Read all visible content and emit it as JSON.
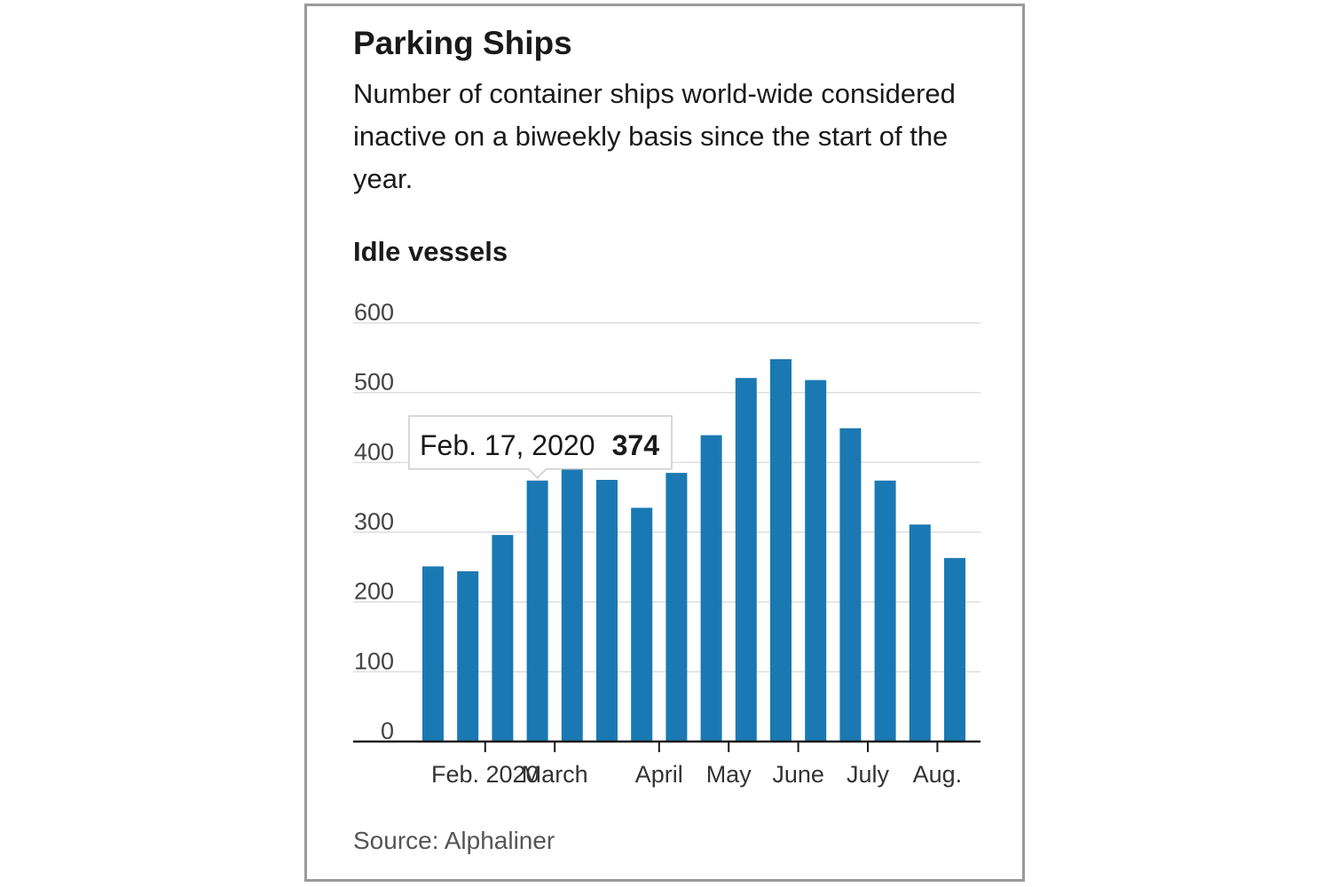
{
  "title": "Parking Ships",
  "subtitle": "Number of container ships world-wide considered inactive on a biweekly basis since the start of the year.",
  "source": "Source: Alphaliner",
  "colors": {
    "bar": "#1a79b2",
    "grid": "#dddddd",
    "axis": "#1a1a1a",
    "frame": "#9a9a9a"
  },
  "tooltip": {
    "date": "Feb. 17, 2020",
    "value": "374",
    "bar_index": 3
  },
  "chart_data": {
    "type": "bar",
    "title": "Idle vessels",
    "xlabel": "",
    "ylabel": "Idle vessels",
    "ylim": [
      0,
      600
    ],
    "yticks": [
      0,
      100,
      200,
      300,
      400,
      500,
      600
    ],
    "values": [
      251,
      244,
      296,
      374,
      397,
      375,
      335,
      385,
      439,
      521,
      548,
      518,
      449,
      374,
      311,
      263
    ],
    "x_tick_labels": [
      "Feb. 2020",
      "March",
      "April",
      "May",
      "June",
      "July",
      "Aug."
    ],
    "x_tick_after_bar": [
      1,
      3,
      6,
      8,
      10,
      12,
      14
    ]
  }
}
